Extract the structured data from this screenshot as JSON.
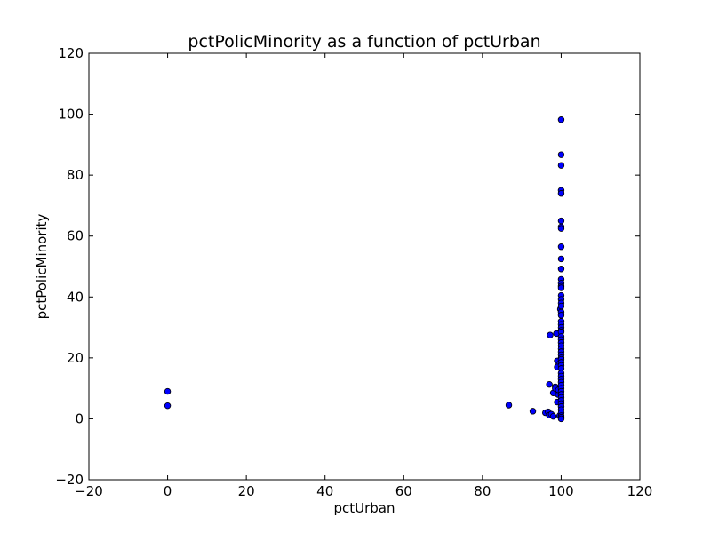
{
  "chart_data": {
    "type": "scatter",
    "title": "pctPolicMinority as a function of pctUrban",
    "xlabel": "pctUrban",
    "ylabel": "pctPolicMinority",
    "xlim": [
      -20,
      120
    ],
    "ylim": [
      -20,
      120
    ],
    "xticks": [
      -20,
      0,
      20,
      40,
      60,
      80,
      100,
      120
    ],
    "yticks": [
      -20,
      0,
      20,
      40,
      60,
      80,
      100,
      120
    ],
    "grid": false,
    "legend": "none",
    "marker_color": "#0000ff",
    "marker_edge_color": "#000000",
    "x": [
      0,
      0,
      86.7,
      92.8,
      96.0,
      96.7,
      97.0,
      97.5,
      98.0,
      98.5,
      99.0,
      99.2,
      97.0,
      98.0,
      97.2,
      98.8,
      99.0,
      99.5,
      99.8,
      99.0,
      99.0,
      98.5,
      99.3,
      99.6,
      100,
      100,
      100,
      100,
      100,
      100,
      100,
      100,
      100,
      100,
      100,
      100,
      100,
      100,
      100,
      100,
      100,
      100,
      100,
      100,
      100,
      100,
      100,
      100,
      100,
      100,
      100,
      100,
      100,
      100,
      100,
      100,
      100,
      100,
      100,
      100,
      100,
      100,
      100,
      100,
      100,
      100,
      100,
      100,
      100,
      100,
      100,
      100,
      100,
      100,
      100,
      100,
      100,
      100,
      100
    ],
    "y": [
      9.0,
      4.3,
      4.5,
      2.5,
      2.0,
      2.3,
      1.2,
      1.5,
      0.8,
      10.5,
      9.0,
      8.0,
      11.3,
      8.5,
      27.5,
      28.0,
      19.0,
      18.0,
      36.0,
      17.0,
      5.5,
      10.0,
      9.5,
      1.0,
      98.2,
      86.7,
      83.2,
      75.0,
      74.0,
      65.0,
      63.0,
      62.5,
      56.5,
      52.5,
      49.2,
      45.8,
      44.5,
      43.5,
      43.0,
      40.5,
      39.2,
      38.0,
      37.0,
      35.0,
      34.0,
      32.0,
      31.0,
      30.0,
      29.0,
      28.5,
      27.0,
      26.0,
      25.0,
      24.0,
      23.0,
      22.0,
      21.0,
      20.0,
      19.5,
      18.5,
      17.5,
      16.5,
      15.0,
      14.0,
      13.0,
      12.0,
      11.0,
      10.0,
      9.0,
      8.0,
      7.0,
      6.0,
      5.0,
      4.0,
      3.0,
      2.0,
      1.0,
      0.5,
      0.0
    ]
  }
}
